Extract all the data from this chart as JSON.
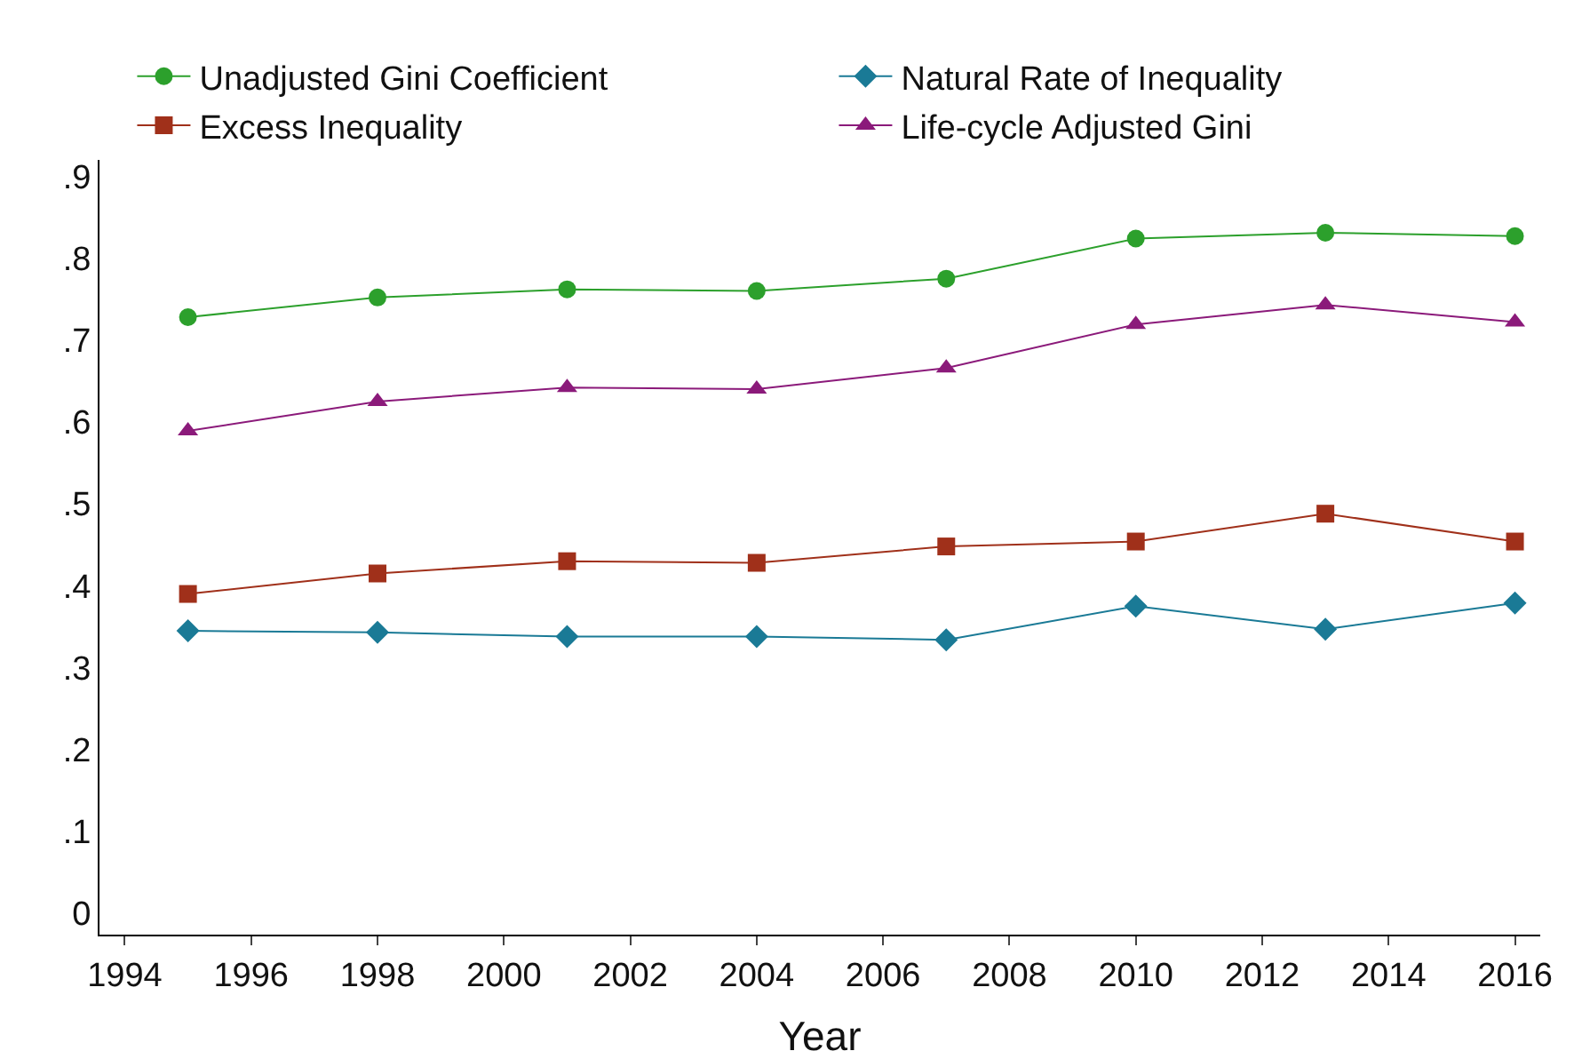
{
  "chart_data": {
    "type": "line",
    "xlabel": "Year",
    "x": [
      1995,
      1998,
      2001,
      2004,
      2007,
      2010,
      2013,
      2016
    ],
    "series": [
      {
        "name": "Unadjusted Gini Coefficient",
        "color": "#2ca02c",
        "marker": "circle",
        "values": [
          0.728,
          0.752,
          0.762,
          0.76,
          0.775,
          0.824,
          0.831,
          0.827
        ]
      },
      {
        "name": "Natural Rate of Inequality",
        "color": "#1a7a96",
        "marker": "diamond",
        "values": [
          0.345,
          0.343,
          0.338,
          0.338,
          0.334,
          0.375,
          0.347,
          0.379
        ]
      },
      {
        "name": "Excess Inequality",
        "color": "#a0301a",
        "marker": "square",
        "values": [
          0.39,
          0.415,
          0.43,
          0.428,
          0.448,
          0.454,
          0.488,
          0.454
        ]
      },
      {
        "name": "Life-cycle Adjusted Gini",
        "color": "#8b1a7a",
        "marker": "triangle",
        "values": [
          0.589,
          0.625,
          0.642,
          0.64,
          0.666,
          0.719,
          0.743,
          0.722
        ]
      }
    ],
    "xlim": [
      1993.6,
      2016.4
    ],
    "xticks": [
      1994,
      1996,
      1998,
      2000,
      2002,
      2004,
      2006,
      2008,
      2010,
      2012,
      2014,
      2016
    ],
    "ylim": [
      -0.026,
      0.92
    ],
    "yticks": [
      0,
      {
        "value": 0.1,
        "label": ".1"
      },
      {
        "value": 0.2,
        "label": ".2"
      },
      {
        "value": 0.3,
        "label": ".3"
      },
      {
        "value": 0.4,
        "label": ".4"
      },
      {
        "value": 0.5,
        "label": ".5"
      },
      {
        "value": 0.6,
        "label": ".6"
      },
      {
        "value": 0.7,
        "label": ".7"
      },
      {
        "value": 0.8,
        "label": ".8"
      },
      {
        "value": 0.9,
        "label": ".9"
      }
    ],
    "grid": false,
    "legend": "top",
    "line_style": "solid"
  }
}
